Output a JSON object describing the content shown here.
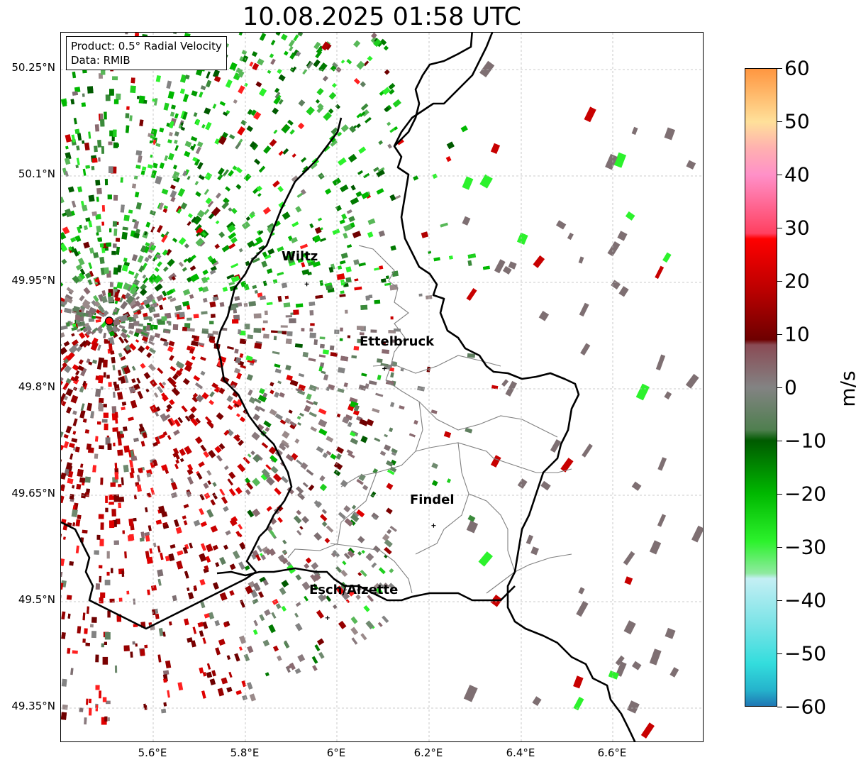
{
  "title": "10.08.2025 01:58 UTC",
  "info_box": {
    "product": "Product: 0.5° Radial Velocity",
    "source": "Data: RMIB"
  },
  "lat_labels": [
    "50.25°N",
    "50.1°N",
    "49.95°N",
    "49.8°N",
    "49.65°N",
    "49.5°N",
    "49.35°N"
  ],
  "lon_labels": [
    "5.6°E",
    "5.8°E",
    "6°E",
    "6.2°E",
    "6.4°E",
    "6.6°E"
  ],
  "cities": [
    {
      "name": "Wiltz",
      "lon": 5.935,
      "lat": 49.966
    },
    {
      "name": "Ettelbruck",
      "lon": 6.104,
      "lat": 49.847
    },
    {
      "name": "Findel",
      "lon": 6.211,
      "lat": 49.626
    },
    {
      "name": "Esch/Alzette",
      "lon": 5.98,
      "lat": 49.496
    }
  ],
  "radar_site": {
    "lon": 5.505,
    "lat": 49.914
  },
  "colorbar": {
    "unit": "m/s",
    "min": -60,
    "max": 60,
    "tick_values": [
      60,
      50,
      40,
      30,
      20,
      10,
      0,
      -10,
      -20,
      -30,
      -40,
      -50,
      -60
    ],
    "tick_labels": [
      "60",
      "50",
      "40",
      "30",
      "20",
      "10",
      "0",
      "−10",
      "−20",
      "−30",
      "−40",
      "−50",
      "−60"
    ],
    "stops": [
      {
        "v": -60,
        "color": "#1f77b4"
      },
      {
        "v": -57,
        "color": "#25b3cc"
      },
      {
        "v": -52,
        "color": "#33dddd"
      },
      {
        "v": -45,
        "color": "#77e3e6"
      },
      {
        "v": -36,
        "color": "#c4eff4"
      },
      {
        "v": -35,
        "color": "#8feaa0"
      },
      {
        "v": -29,
        "color": "#2cf22c"
      },
      {
        "v": -20,
        "color": "#00b800"
      },
      {
        "v": -10,
        "color": "#005a00"
      },
      {
        "v": -8,
        "color": "#4f7f4f"
      },
      {
        "v": 0,
        "color": "#838383"
      },
      {
        "v": 8,
        "color": "#8a4b55"
      },
      {
        "v": 9,
        "color": "#6e0000"
      },
      {
        "v": 18,
        "color": "#b80000"
      },
      {
        "v": 28,
        "color": "#ff0000"
      },
      {
        "v": 29,
        "color": "#ff4060"
      },
      {
        "v": 40,
        "color": "#ff90c8"
      },
      {
        "v": 45,
        "color": "#ffb0b0"
      },
      {
        "v": 50,
        "color": "#ffe09a"
      },
      {
        "v": 60,
        "color": "#ff9640"
      }
    ]
  }
}
